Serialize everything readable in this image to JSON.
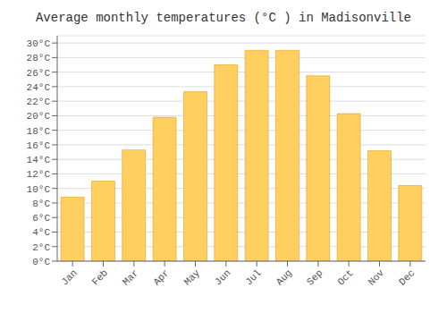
{
  "chart_data": {
    "type": "bar",
    "title": "Average monthly temperatures (°C ) in Madisonville",
    "categories": [
      "Jan",
      "Feb",
      "Mar",
      "Apr",
      "May",
      "Jun",
      "Jul",
      "Aug",
      "Sep",
      "Oct",
      "Nov",
      "Dec"
    ],
    "values": [
      8.8,
      11.0,
      15.3,
      19.8,
      23.3,
      27.0,
      29.0,
      29.0,
      25.5,
      20.3,
      15.2,
      10.4
    ],
    "color": "#FFD060",
    "ylim": [
      0,
      31
    ],
    "yticks": [
      {
        "value": 0,
        "label": "0°C"
      },
      {
        "value": 2,
        "label": "2°C"
      },
      {
        "value": 4,
        "label": "4°C"
      },
      {
        "value": 6,
        "label": "6°C"
      },
      {
        "value": 8,
        "label": "8°C"
      },
      {
        "value": 10,
        "label": "10°C"
      },
      {
        "value": 12,
        "label": "12°C"
      },
      {
        "value": 14,
        "label": "14°C"
      },
      {
        "value": 16,
        "label": "16°C"
      },
      {
        "value": 18,
        "label": "18°C"
      },
      {
        "value": 20,
        "label": "20°C"
      },
      {
        "value": 22,
        "label": "22°C"
      },
      {
        "value": 24,
        "label": "24°C"
      },
      {
        "value": 26,
        "label": "26°C"
      },
      {
        "value": 28,
        "label": "28°C"
      },
      {
        "value": 30,
        "label": "30°C"
      }
    ],
    "grid": true
  }
}
